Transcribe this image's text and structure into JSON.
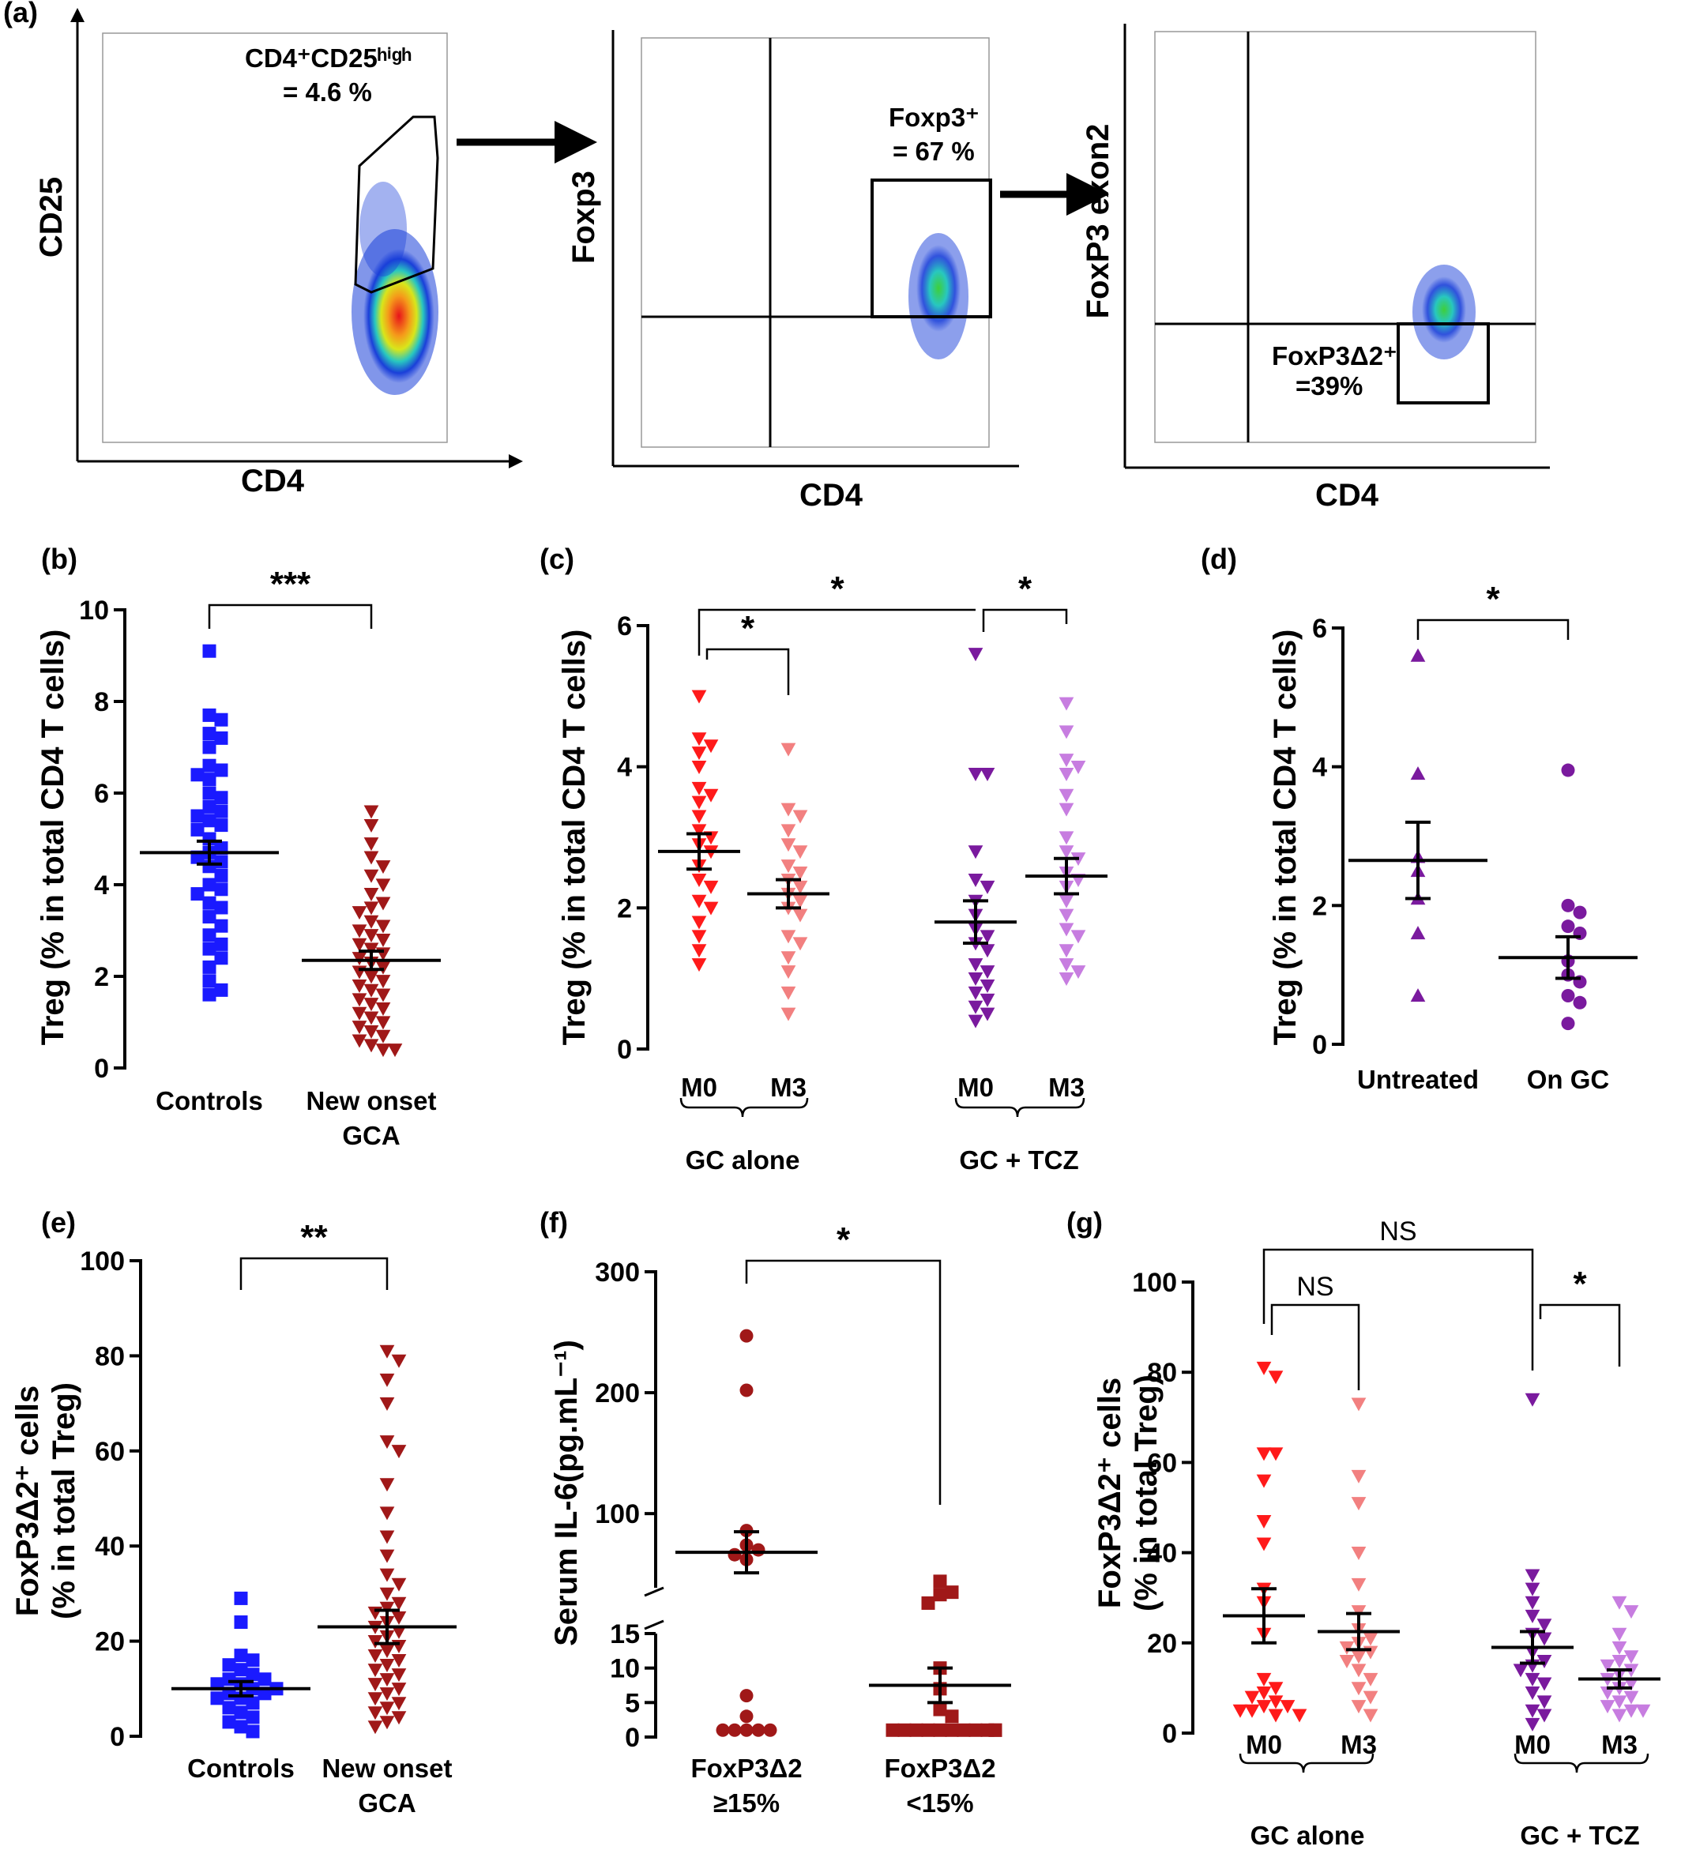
{
  "panels": {
    "a": {
      "label": "(a)",
      "plot1": {
        "ylabel": "CD25",
        "xlabel": "CD4",
        "gate_line1": "CD4⁺CD25ʰⁱᵍʰ",
        "gate_line2": "= 4.6 %"
      },
      "plot2": {
        "ylabel": "Foxp3",
        "xlabel": "CD4",
        "gate_line1": "Foxp3⁺",
        "gate_line2": "= 67 %"
      },
      "plot3": {
        "ylabel": "FoxP3 exon2",
        "xlabel": "CD4",
        "gate_line1": "FoxP3Δ2⁺",
        "gate_line2": "=39%"
      }
    },
    "b": {
      "label": "(b)"
    },
    "c": {
      "label": "(c)",
      "groups": [
        "GC alone",
        "GC + TCZ"
      ]
    },
    "d": {
      "label": "(d)"
    },
    "e": {
      "label": "(e)"
    },
    "f": {
      "label": "(f)"
    },
    "g": {
      "label": "(g)",
      "groups": [
        "GC alone",
        "GC + TCZ"
      ]
    }
  },
  "chart_data": [
    {
      "panel": "b",
      "type": "scatter",
      "ylabel": "Treg (% in total CD4 T cells)",
      "ylim": [
        0,
        10
      ],
      "yticks": [
        0,
        2,
        4,
        6,
        8,
        10
      ],
      "categories": [
        "Controls",
        "New onset\nGCA"
      ],
      "series": [
        {
          "name": "Controls",
          "color": "#1a1aff",
          "marker": "square",
          "mean": 4.7,
          "sem": 0.25,
          "values": [
            9.1,
            7.7,
            7.6,
            7.3,
            7.2,
            7.0,
            6.6,
            6.5,
            6.4,
            6.3,
            6.0,
            5.9,
            5.7,
            5.6,
            5.5,
            5.4,
            5.3,
            5.2,
            5.0,
            4.8,
            4.7,
            4.6,
            4.5,
            4.4,
            4.2,
            4.0,
            3.9,
            3.8,
            3.6,
            3.5,
            3.3,
            3.1,
            2.9,
            2.7,
            2.6,
            2.4,
            2.2,
            1.9,
            1.7,
            1.6
          ]
        },
        {
          "name": "New onset GCA",
          "color": "#a01818",
          "marker": "triangle-down",
          "mean": 2.35,
          "sem": 0.2,
          "values": [
            5.6,
            5.3,
            4.9,
            4.6,
            4.4,
            4.2,
            4.0,
            3.8,
            3.6,
            3.5,
            3.4,
            3.2,
            3.1,
            3.0,
            2.9,
            2.8,
            2.7,
            2.6,
            2.5,
            2.4,
            2.3,
            2.2,
            2.1,
            2.0,
            1.9,
            1.8,
            1.7,
            1.6,
            1.5,
            1.4,
            1.3,
            1.2,
            1.1,
            1.0,
            0.9,
            0.8,
            0.7,
            0.6,
            0.5,
            0.4,
            0.4
          ]
        }
      ],
      "comparisons": [
        {
          "from": 0,
          "to": 1,
          "label": "***"
        }
      ]
    },
    {
      "panel": "c",
      "type": "scatter",
      "ylabel": "Treg (% in total CD4 T cells)",
      "ylim": [
        0,
        6
      ],
      "yticks": [
        0,
        2,
        4,
        6
      ],
      "categories": [
        "M0",
        "M3",
        "M0",
        "M3"
      ],
      "series": [
        {
          "name": "GC alone M0",
          "color": "#ff1a1a",
          "marker": "triangle-down",
          "mean": 2.8,
          "sem": 0.25,
          "values": [
            5.0,
            4.4,
            4.3,
            4.2,
            4.0,
            3.7,
            3.6,
            3.5,
            3.3,
            3.1,
            3.0,
            2.9,
            2.8,
            2.6,
            2.4,
            2.3,
            2.1,
            2.0,
            1.8,
            1.6,
            1.4,
            1.2
          ]
        },
        {
          "name": "GC alone M3",
          "color": "#f28080",
          "marker": "triangle-down",
          "mean": 2.2,
          "sem": 0.2,
          "values": [
            4.25,
            3.4,
            3.3,
            3.1,
            2.9,
            2.8,
            2.6,
            2.5,
            2.4,
            2.3,
            2.2,
            2.1,
            2.0,
            1.9,
            1.6,
            1.5,
            1.3,
            1.1,
            0.8,
            0.5
          ]
        },
        {
          "name": "GC + TCZ M0",
          "color": "#7a1a9e",
          "marker": "triangle-down",
          "mean": 1.8,
          "sem": 0.3,
          "values": [
            5.6,
            3.9,
            3.9,
            2.8,
            2.4,
            2.3,
            2.1,
            1.9,
            1.7,
            1.6,
            1.5,
            1.4,
            1.2,
            1.1,
            1.0,
            0.9,
            0.8,
            0.7,
            0.6,
            0.5,
            0.4
          ]
        },
        {
          "name": "GC + TCZ M3",
          "color": "#c77de0",
          "marker": "triangle-down",
          "mean": 2.45,
          "sem": 0.25,
          "values": [
            4.9,
            4.5,
            4.1,
            4.0,
            3.9,
            3.6,
            3.4,
            3.0,
            2.8,
            2.7,
            2.5,
            2.4,
            2.3,
            2.1,
            1.9,
            1.7,
            1.6,
            1.4,
            1.2,
            1.1,
            1.0
          ]
        }
      ],
      "comparisons": [
        {
          "from": 0,
          "to": 2,
          "label": "*"
        },
        {
          "from": 0,
          "to": 1,
          "label": "*"
        },
        {
          "from": 2,
          "to": 3,
          "label": "*"
        }
      ]
    },
    {
      "panel": "d",
      "type": "scatter",
      "ylabel": "Treg (% in total CD4 T cells)",
      "ylim": [
        0,
        6
      ],
      "yticks": [
        0,
        2,
        4,
        6
      ],
      "categories": [
        "Untreated",
        "On GC"
      ],
      "series": [
        {
          "name": "Untreated",
          "color": "#7a1a9e",
          "marker": "triangle-up",
          "mean": 2.65,
          "sem": 0.55,
          "values": [
            5.6,
            3.9,
            2.7,
            2.5,
            2.1,
            1.6,
            0.7
          ]
        },
        {
          "name": "On GC",
          "color": "#7a1a9e",
          "marker": "circle",
          "mean": 1.25,
          "sem": 0.3,
          "values": [
            3.95,
            2.0,
            1.9,
            1.7,
            1.6,
            1.2,
            1.0,
            0.9,
            0.7,
            0.6,
            0.3
          ]
        }
      ],
      "comparisons": [
        {
          "from": 0,
          "to": 1,
          "label": "*"
        }
      ]
    },
    {
      "panel": "e",
      "type": "scatter",
      "ylabel": "FoxP3Δ2⁺ cells (% in total Treg)",
      "ylim": [
        0,
        100
      ],
      "yticks": [
        0,
        20,
        40,
        60,
        80,
        100
      ],
      "categories": [
        "Controls",
        "New onset\nGCA"
      ],
      "series": [
        {
          "name": "Controls",
          "color": "#1a1aff",
          "marker": "square",
          "mean": 10,
          "sem": 1.5,
          "values": [
            29,
            24,
            17,
            16,
            15,
            14,
            13,
            12,
            12,
            11,
            11,
            10,
            10,
            9,
            9,
            8,
            8,
            7,
            6,
            5,
            4,
            3,
            2,
            1
          ]
        },
        {
          "name": "New onset GCA",
          "color": "#a01818",
          "marker": "triangle-down",
          "mean": 23,
          "sem": 3.5,
          "values": [
            81,
            79,
            75,
            70,
            62,
            60,
            53,
            47,
            42,
            38,
            34,
            32,
            30,
            28,
            27,
            26,
            25,
            24,
            23,
            22,
            21,
            20,
            19,
            18,
            17,
            16,
            15,
            14,
            13,
            12,
            11,
            10,
            9,
            8,
            7,
            6,
            5,
            4,
            3,
            2
          ]
        }
      ],
      "comparisons": [
        {
          "from": 0,
          "to": 1,
          "label": "**"
        }
      ]
    },
    {
      "panel": "f",
      "type": "scatter",
      "ylabel": "Serum IL-6(pg.mL⁻¹)",
      "ylim_upper": [
        40,
        300
      ],
      "ylim_lower": [
        0,
        15
      ],
      "yticks_upper": [
        100,
        200,
        300
      ],
      "yticks_lower": [
        0,
        5,
        10,
        15
      ],
      "categories": [
        "FoxP3Δ2\n≥15%",
        "FoxP3Δ2\n<15%"
      ],
      "series": [
        {
          "name": "FoxP3Δ2 ≥15%",
          "color": "#a01818",
          "marker": "circle",
          "mean": 68,
          "sem": 17,
          "values": [
            247,
            202,
            86,
            74,
            70,
            66,
            62,
            6,
            3,
            1,
            1,
            1,
            1,
            1
          ]
        },
        {
          "name": "FoxP3Δ2 <15%",
          "color": "#a01818",
          "marker": "square",
          "mean": 7.5,
          "sem": 2.5,
          "values": [
            44,
            35,
            33,
            26,
            10,
            7,
            4,
            3,
            1,
            1,
            1,
            1,
            1,
            1,
            1,
            1,
            1,
            1,
            1
          ]
        }
      ],
      "comparisons": [
        {
          "from": 0,
          "to": 1,
          "label": "*"
        }
      ]
    },
    {
      "panel": "g",
      "type": "scatter",
      "ylabel": "FoxP3Δ2⁺ cells (% in total Treg)",
      "ylim": [
        0,
        100
      ],
      "yticks": [
        0,
        20,
        40,
        60,
        80,
        100
      ],
      "categories": [
        "M0",
        "M3",
        "M0",
        "M3"
      ],
      "series": [
        {
          "name": "GC alone M0",
          "color": "#ff1a1a",
          "marker": "triangle-down",
          "mean": 26,
          "sem": 6,
          "values": [
            81,
            79,
            62,
            62,
            56,
            47,
            42,
            32,
            29,
            22,
            12,
            10,
            9,
            8,
            7,
            6,
            6,
            5,
            5,
            4,
            4
          ]
        },
        {
          "name": "GC alone M3",
          "color": "#f28080",
          "marker": "triangle-down",
          "mean": 22.5,
          "sem": 4,
          "values": [
            73,
            57,
            51,
            40,
            33,
            27,
            23,
            21,
            20,
            19,
            18,
            17,
            16,
            14,
            12,
            10,
            8,
            6,
            4
          ]
        },
        {
          "name": "GC + TCZ M0",
          "color": "#7a1a9e",
          "marker": "triangle-down",
          "mean": 19,
          "sem": 3.5,
          "values": [
            74,
            35,
            32,
            29,
            26,
            24,
            22,
            21,
            18,
            16,
            15,
            14,
            12,
            11,
            9,
            7,
            5,
            4,
            2
          ]
        },
        {
          "name": "GC + TCZ M3",
          "color": "#c77de0",
          "marker": "triangle-down",
          "mean": 12,
          "sem": 2,
          "values": [
            29,
            27,
            22,
            19,
            17,
            16,
            15,
            14,
            13,
            12,
            11,
            10,
            9,
            8,
            7,
            6,
            5,
            5,
            4
          ]
        }
      ],
      "comparisons": [
        {
          "from": 0,
          "to": 2,
          "label": "NS"
        },
        {
          "from": 0,
          "to": 1,
          "label": "NS"
        },
        {
          "from": 2,
          "to": 3,
          "label": "*"
        }
      ]
    }
  ]
}
